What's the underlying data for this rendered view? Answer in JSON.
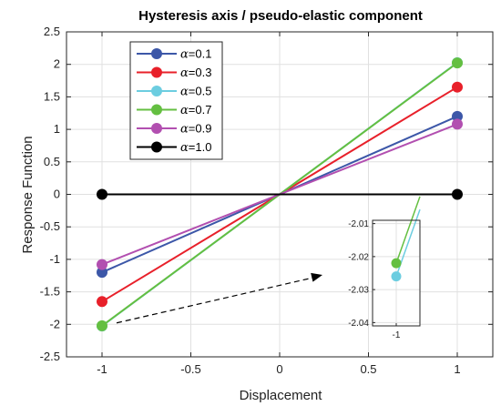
{
  "chart_data": {
    "type": "line",
    "title": "Hysteresis axis / pseudo-elastic component",
    "xlabel": "Displacement",
    "ylabel": "Response Function",
    "xlim": [
      -1.2,
      1.2
    ],
    "ylim": [
      -2.5,
      2.5
    ],
    "xticks": [
      "-1",
      "-0.5",
      "0",
      "0.5",
      "1"
    ],
    "xtick_values": [
      -1,
      -0.5,
      0,
      0.5,
      1
    ],
    "yticks": [
      "-2.5",
      "-2",
      "-1.5",
      "-1",
      "-0.5",
      "0",
      "0.5",
      "1",
      "1.5",
      "2",
      "2.5"
    ],
    "ytick_values": [
      -2.5,
      -2,
      -1.5,
      -1,
      -0.5,
      0,
      0.5,
      1,
      1.5,
      2,
      2.5
    ],
    "grid": true,
    "legend_position": "top-left",
    "x": [
      -1,
      1
    ],
    "series": [
      {
        "name": "=0.1",
        "symbol": "α",
        "color": "#3c57a8",
        "values": [
          -1.2,
          1.2
        ]
      },
      {
        "name": "=0.3",
        "symbol": "α",
        "color": "#e8202a",
        "values": [
          -1.65,
          1.65
        ]
      },
      {
        "name": "=0.5",
        "symbol": "α",
        "color": "#6ccde0",
        "values": [
          -2.026,
          2.026
        ]
      },
      {
        "name": "=0.7",
        "symbol": "α",
        "color": "#64bf41",
        "values": [
          -2.022,
          2.022
        ]
      },
      {
        "name": "=0.9",
        "symbol": "α",
        "color": "#b24fb0",
        "values": [
          -1.08,
          1.08
        ]
      },
      {
        "name": "=1.0",
        "symbol": "α",
        "color": "#000000",
        "values": [
          0,
          0
        ]
      }
    ],
    "inset": {
      "xlim": [
        -1.01,
        -0.99
      ],
      "ylim": [
        -2.041,
        -2.009
      ],
      "xticks": [
        "-1"
      ],
      "xtick_values": [
        -1
      ],
      "yticks": [
        "-2.01",
        "-2.02",
        "-2.03",
        "-2.04"
      ],
      "ytick_values": [
        -2.01,
        -2.02,
        -2.03,
        -2.04
      ],
      "series_shown": [
        2,
        3
      ]
    },
    "annotation": {
      "type": "dashed-arrow",
      "from": [
        -1,
        -2.02
      ],
      "to": "inset"
    }
  }
}
